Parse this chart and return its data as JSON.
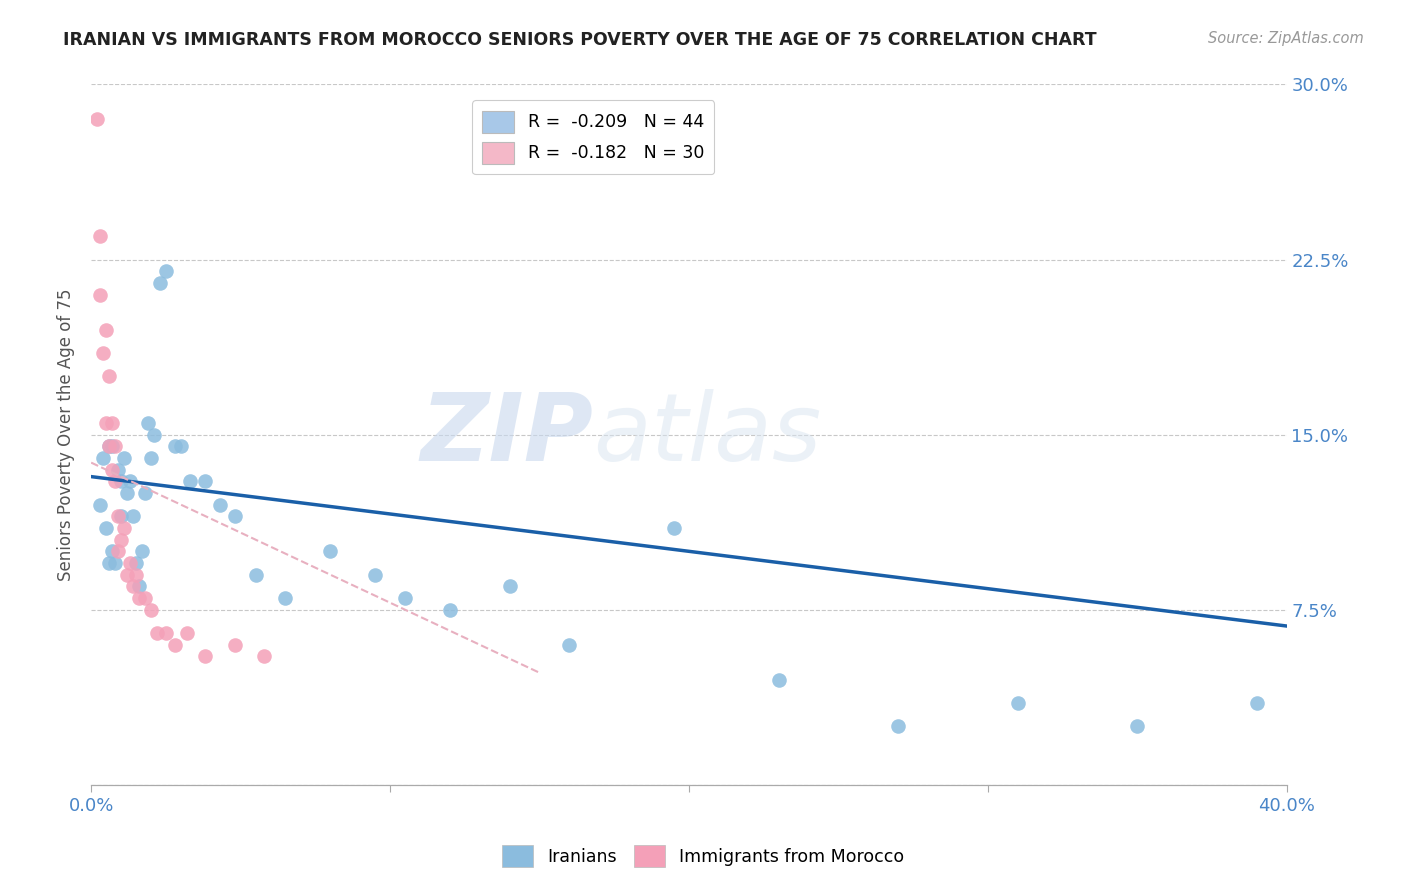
{
  "title": "IRANIAN VS IMMIGRANTS FROM MOROCCO SENIORS POVERTY OVER THE AGE OF 75 CORRELATION CHART",
  "source": "Source: ZipAtlas.com",
  "ylabel": "Seniors Poverty Over the Age of 75",
  "xmin": 0.0,
  "xmax": 0.4,
  "ymin": 0.0,
  "ymax": 0.3,
  "yticks": [
    0.0,
    0.075,
    0.15,
    0.225,
    0.3
  ],
  "ytick_labels": [
    "",
    "7.5%",
    "15.0%",
    "22.5%",
    "30.0%"
  ],
  "xticks": [
    0.0,
    0.1,
    0.2,
    0.3,
    0.4
  ],
  "xtick_labels": [
    "0.0%",
    "",
    "",
    "",
    "40.0%"
  ],
  "legend_entries": [
    {
      "label": "R =  -0.209   N = 44",
      "color": "#a8c8e8"
    },
    {
      "label": "R =  -0.182   N = 30",
      "color": "#f4b8c8"
    }
  ],
  "iranians_color": "#8bbcde",
  "morocco_color": "#f4a0b8",
  "trend_iranian_color": "#1a5fa8",
  "trend_morocco_color": "#e8b0c0",
  "watermark_zip": "ZIP",
  "watermark_atlas": "atlas",
  "iranians_x": [
    0.003,
    0.004,
    0.005,
    0.006,
    0.006,
    0.007,
    0.007,
    0.008,
    0.009,
    0.01,
    0.01,
    0.011,
    0.012,
    0.013,
    0.014,
    0.015,
    0.016,
    0.017,
    0.018,
    0.019,
    0.02,
    0.021,
    0.023,
    0.025,
    0.028,
    0.03,
    0.033,
    0.038,
    0.043,
    0.048,
    0.055,
    0.065,
    0.08,
    0.095,
    0.105,
    0.12,
    0.14,
    0.16,
    0.195,
    0.23,
    0.27,
    0.31,
    0.35,
    0.39
  ],
  "iranians_y": [
    0.12,
    0.14,
    0.11,
    0.095,
    0.145,
    0.1,
    0.145,
    0.095,
    0.135,
    0.115,
    0.13,
    0.14,
    0.125,
    0.13,
    0.115,
    0.095,
    0.085,
    0.1,
    0.125,
    0.155,
    0.14,
    0.15,
    0.215,
    0.22,
    0.145,
    0.145,
    0.13,
    0.13,
    0.12,
    0.115,
    0.09,
    0.08,
    0.1,
    0.09,
    0.08,
    0.075,
    0.085,
    0.06,
    0.11,
    0.045,
    0.025,
    0.035,
    0.025,
    0.035
  ],
  "morocco_x": [
    0.002,
    0.003,
    0.003,
    0.004,
    0.005,
    0.005,
    0.006,
    0.006,
    0.007,
    0.007,
    0.008,
    0.008,
    0.009,
    0.009,
    0.01,
    0.011,
    0.012,
    0.013,
    0.014,
    0.015,
    0.016,
    0.018,
    0.02,
    0.022,
    0.025,
    0.028,
    0.032,
    0.038,
    0.048,
    0.058
  ],
  "morocco_y": [
    0.285,
    0.235,
    0.21,
    0.185,
    0.195,
    0.155,
    0.175,
    0.145,
    0.155,
    0.135,
    0.13,
    0.145,
    0.115,
    0.1,
    0.105,
    0.11,
    0.09,
    0.095,
    0.085,
    0.09,
    0.08,
    0.08,
    0.075,
    0.065,
    0.065,
    0.06,
    0.065,
    0.055,
    0.06,
    0.055
  ],
  "trend_iranian_x0": 0.0,
  "trend_iranian_y0": 0.132,
  "trend_iranian_x1": 0.4,
  "trend_iranian_y1": 0.068,
  "trend_morocco_x0": 0.0,
  "trend_morocco_y0": 0.138,
  "trend_morocco_x1": 0.15,
  "trend_morocco_y1": 0.048
}
